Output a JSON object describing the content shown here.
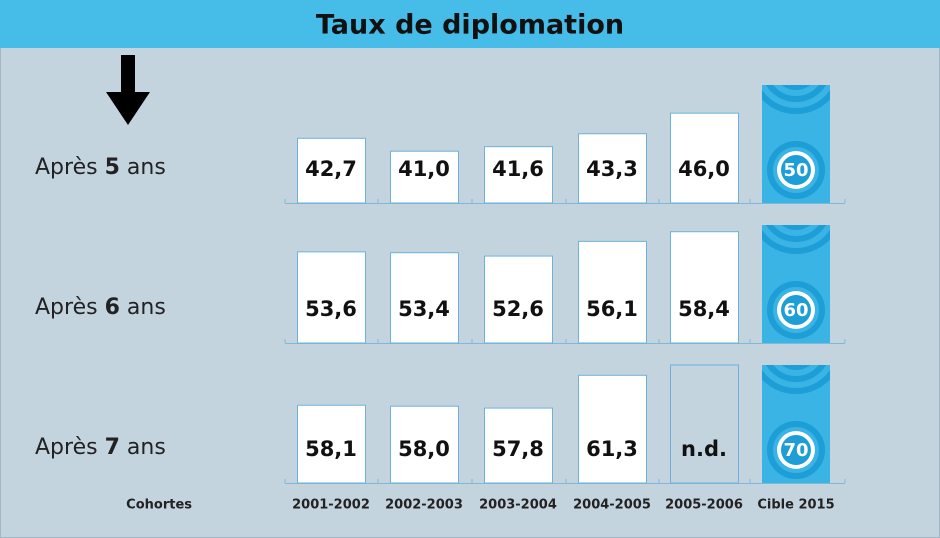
{
  "chart_data": {
    "type": "bar",
    "title": "Taux de diplomation",
    "x_label": "Cohortes",
    "categories": [
      "2001-2002",
      "2002-2003",
      "2003-2004",
      "2004-2005",
      "2005-2006"
    ],
    "target_label": "Cible 2015",
    "series": [
      {
        "name": {
          "prefix": "Après",
          "number": "5",
          "suffix": "ans"
        },
        "values": [
          42.7,
          41.0,
          41.6,
          43.3,
          46.0
        ],
        "value_labels": [
          "42,7",
          "41,0",
          "41,6",
          "43,3",
          "46,0"
        ],
        "target": 50,
        "ylim": [
          34.2,
          49.7
        ]
      },
      {
        "name": {
          "prefix": "Après",
          "number": "6",
          "suffix": "ans"
        },
        "values": [
          53.6,
          53.4,
          52.6,
          56.1,
          58.4
        ],
        "value_labels": [
          "53,6",
          "53,4",
          "52,6",
          "56,1",
          "58,4"
        ],
        "target": 60,
        "ylim": [
          31.9,
          60
        ]
      },
      {
        "name": {
          "prefix": "Après",
          "number": "7",
          "suffix": "ans"
        },
        "values": [
          58.1,
          58.0,
          57.8,
          61.3,
          null
        ],
        "value_labels": [
          "58,1",
          "58,0",
          "57,8",
          "61,3",
          "n.d."
        ],
        "target": 70,
        "ylim": [
          49.8,
          62.4
        ]
      }
    ]
  }
}
